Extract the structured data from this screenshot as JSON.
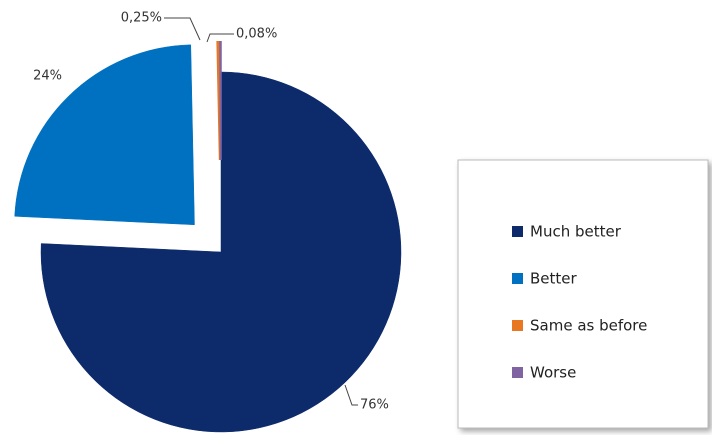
{
  "chart_data": {
    "type": "pie",
    "categories": [
      "Much better",
      "Better",
      "Same as before",
      "Worse"
    ],
    "values": [
      76,
      24,
      0.25,
      0.08
    ],
    "value_labels": [
      "76%",
      "24%",
      "0,25%",
      "0,08%"
    ],
    "colors": [
      "#0d2a6b",
      "#0070c0",
      "#e87722",
      "#8064a2"
    ],
    "legend": "right"
  }
}
